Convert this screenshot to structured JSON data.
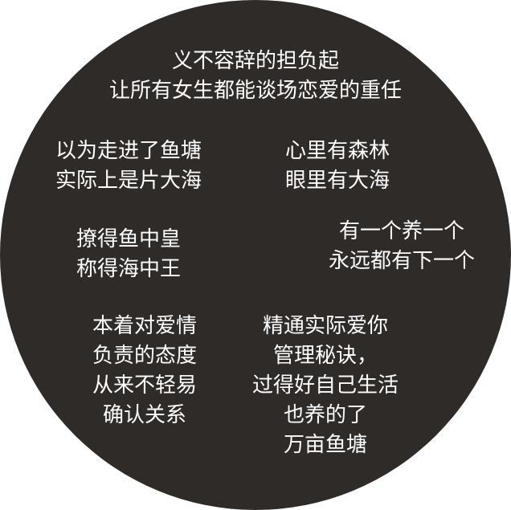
{
  "blocks": {
    "top": [
      "义不容辞的担负起",
      "让所有女生都能谈场恋爱的重任"
    ],
    "middle_left": [
      "以为走进了鱼塘",
      "实际上是片大海"
    ],
    "middle_right": [
      "心里有森林",
      "眼里有大海"
    ],
    "lower_left": [
      "撩得鱼中皇",
      "称得海中王"
    ],
    "lower_right": [
      "有一个养一个",
      "永远都有下一个"
    ],
    "bottom_left": [
      "本着对爱情",
      "负责的态度",
      "从来不轻易",
      "确认关系"
    ],
    "bottom_right": [
      "精通实际爱你",
      "管理秘诀，",
      "过得好自己生活",
      "也养的了",
      "万亩鱼塘"
    ]
  },
  "colors": {
    "circle": "#2e2b29",
    "text": "#ffffff",
    "background": "#ffffff"
  }
}
